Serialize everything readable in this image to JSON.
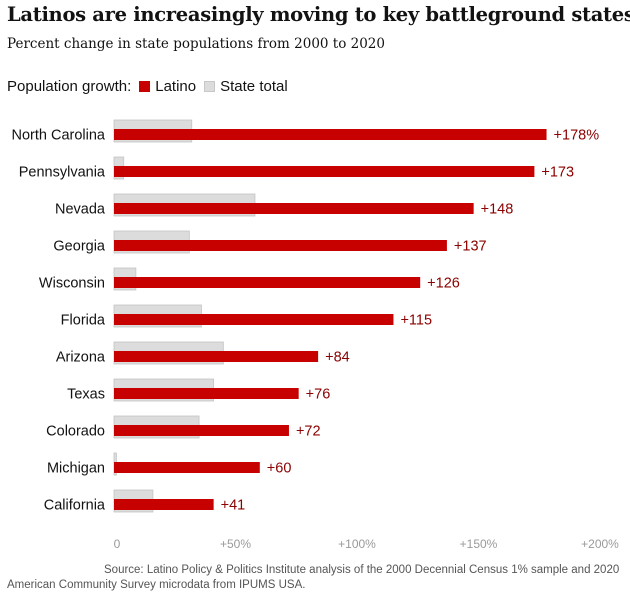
{
  "title": "Latinos are increasingly moving to key battleground states",
  "subtitle": "Percent change in state populations from 2000 to 2020",
  "legend": {
    "heading": "Population growth:",
    "latino_label": "Latino",
    "total_label": "State total"
  },
  "colors": {
    "latino": "#c70000",
    "state_total": "#dcdcdc",
    "state_total_stroke": "#c4c4c4",
    "value_label": "#8b0000"
  },
  "chart_data": {
    "type": "bar",
    "orientation": "horizontal",
    "title": "Latinos are increasingly moving to key battleground states",
    "subtitle": "Percent change in state populations from 2000 to 2020",
    "categories": [
      "North Carolina",
      "Pennsylvania",
      "Nevada",
      "Georgia",
      "Wisconsin",
      "Florida",
      "Arizona",
      "Texas",
      "Colorado",
      "Michigan",
      "California"
    ],
    "series": [
      {
        "name": "Latino",
        "values": [
          178,
          173,
          148,
          137,
          126,
          115,
          84,
          76,
          72,
          60,
          41
        ]
      },
      {
        "name": "State total",
        "values": [
          32,
          4,
          58,
          31,
          9,
          36,
          45,
          41,
          35,
          1,
          16
        ]
      }
    ],
    "value_labels": [
      "+178%",
      "+173",
      "+148",
      "+137",
      "+126",
      "+115",
      "+84",
      "+76",
      "+72",
      "+60",
      "+41"
    ],
    "x_ticks": [
      0,
      50,
      100,
      150,
      200
    ],
    "x_tick_labels": [
      "0",
      "+50%",
      "+100%",
      "+150%",
      "+200%"
    ],
    "xlim": [
      0,
      200
    ],
    "grid": false,
    "legend_position": "top-left"
  },
  "source": "Source: Latino Policy & Politics Institute analysis of the 2000 Decennial Census 1% sample and 2020 American Community Survey microdata from IPUMS USA."
}
